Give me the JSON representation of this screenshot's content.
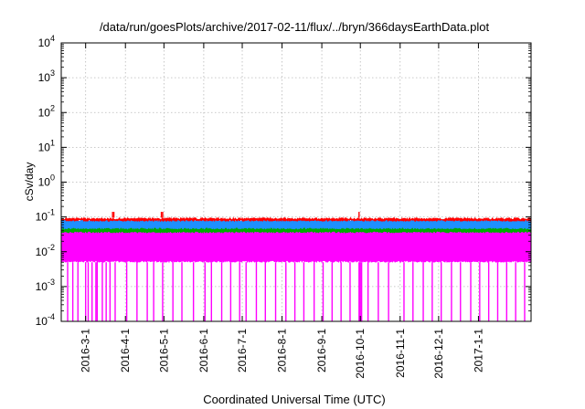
{
  "chart_data": {
    "type": "line",
    "title": "/data/run/goesPlots/archive/2017-02-11/flux/../bryn/366daysEarthData.plot",
    "xlabel": "Coordinated Universal Time (UTC)",
    "ylabel": "cSv/day",
    "yscale": "log",
    "ylim": [
      0.0001,
      10000
    ],
    "y_ticks": [
      {
        "exp": -4,
        "mant": "10",
        "sup": "-4"
      },
      {
        "exp": -3,
        "mant": "10",
        "sup": "-3"
      },
      {
        "exp": -2,
        "mant": "10",
        "sup": "-2"
      },
      {
        "exp": -1,
        "mant": "10",
        "sup": "-1"
      },
      {
        "exp": 0,
        "mant": "10",
        "sup": "0"
      },
      {
        "exp": 1,
        "mant": "10",
        "sup": "1"
      },
      {
        "exp": 2,
        "mant": "10",
        "sup": "2"
      },
      {
        "exp": 3,
        "mant": "10",
        "sup": "3"
      },
      {
        "exp": 4,
        "mant": "10",
        "sup": "4"
      }
    ],
    "xlim": [
      "2016-02-11",
      "2017-02-11"
    ],
    "x_ticks": [
      "2016-3-1",
      "2016-4-1",
      "2016-5-1",
      "2016-6-1",
      "2016-7-1",
      "2016-8-1",
      "2016-9-1",
      "2016-10-1",
      "2016-11-1",
      "2016-12-1",
      "2017-1-1"
    ],
    "grid": true,
    "series": [
      {
        "color": "#ff00ff",
        "band": [
          0.005,
          0.05
        ],
        "dropouts_to": 0.0001
      },
      {
        "color": "#00aa00",
        "band": [
          0.035,
          0.06
        ]
      },
      {
        "color": "#1e90ff",
        "band": [
          0.045,
          0.085
        ]
      },
      {
        "color": "#ff0000",
        "band": [
          0.075,
          0.095
        ]
      }
    ],
    "dropout_dates": [
      "2016-02-16",
      "2016-02-20",
      "2016-02-24",
      "2016-03-01",
      "2016-03-03",
      "2016-03-06",
      "2016-03-09",
      "2016-03-10",
      "2016-03-14",
      "2016-03-17",
      "2016-03-20",
      "2016-03-24",
      "2016-04-02",
      "2016-04-10",
      "2016-04-18",
      "2016-04-23",
      "2016-04-30",
      "2016-05-08",
      "2016-05-15",
      "2016-05-24",
      "2016-06-02",
      "2016-06-07",
      "2016-06-15",
      "2016-06-22",
      "2016-06-29",
      "2016-07-04",
      "2016-07-12",
      "2016-07-19",
      "2016-07-27",
      "2016-08-04",
      "2016-08-11",
      "2016-08-18",
      "2016-08-26",
      "2016-09-02",
      "2016-09-09",
      "2016-09-16",
      "2016-09-23",
      "2016-09-30",
      "2016-10-01",
      "2016-10-02",
      "2016-10-07",
      "2016-10-15",
      "2016-10-23",
      "2016-11-04",
      "2016-11-11",
      "2016-11-19",
      "2016-11-26",
      "2016-12-03",
      "2016-12-11",
      "2016-12-18",
      "2016-12-26",
      "2017-01-02",
      "2017-01-09",
      "2017-01-16",
      "2017-01-23",
      "2017-01-30",
      "2017-02-06"
    ],
    "spike_dates": [
      "2016-03-22",
      "2016-03-23",
      "2016-04-29",
      "2016-04-30",
      "2016-09-30"
    ]
  }
}
